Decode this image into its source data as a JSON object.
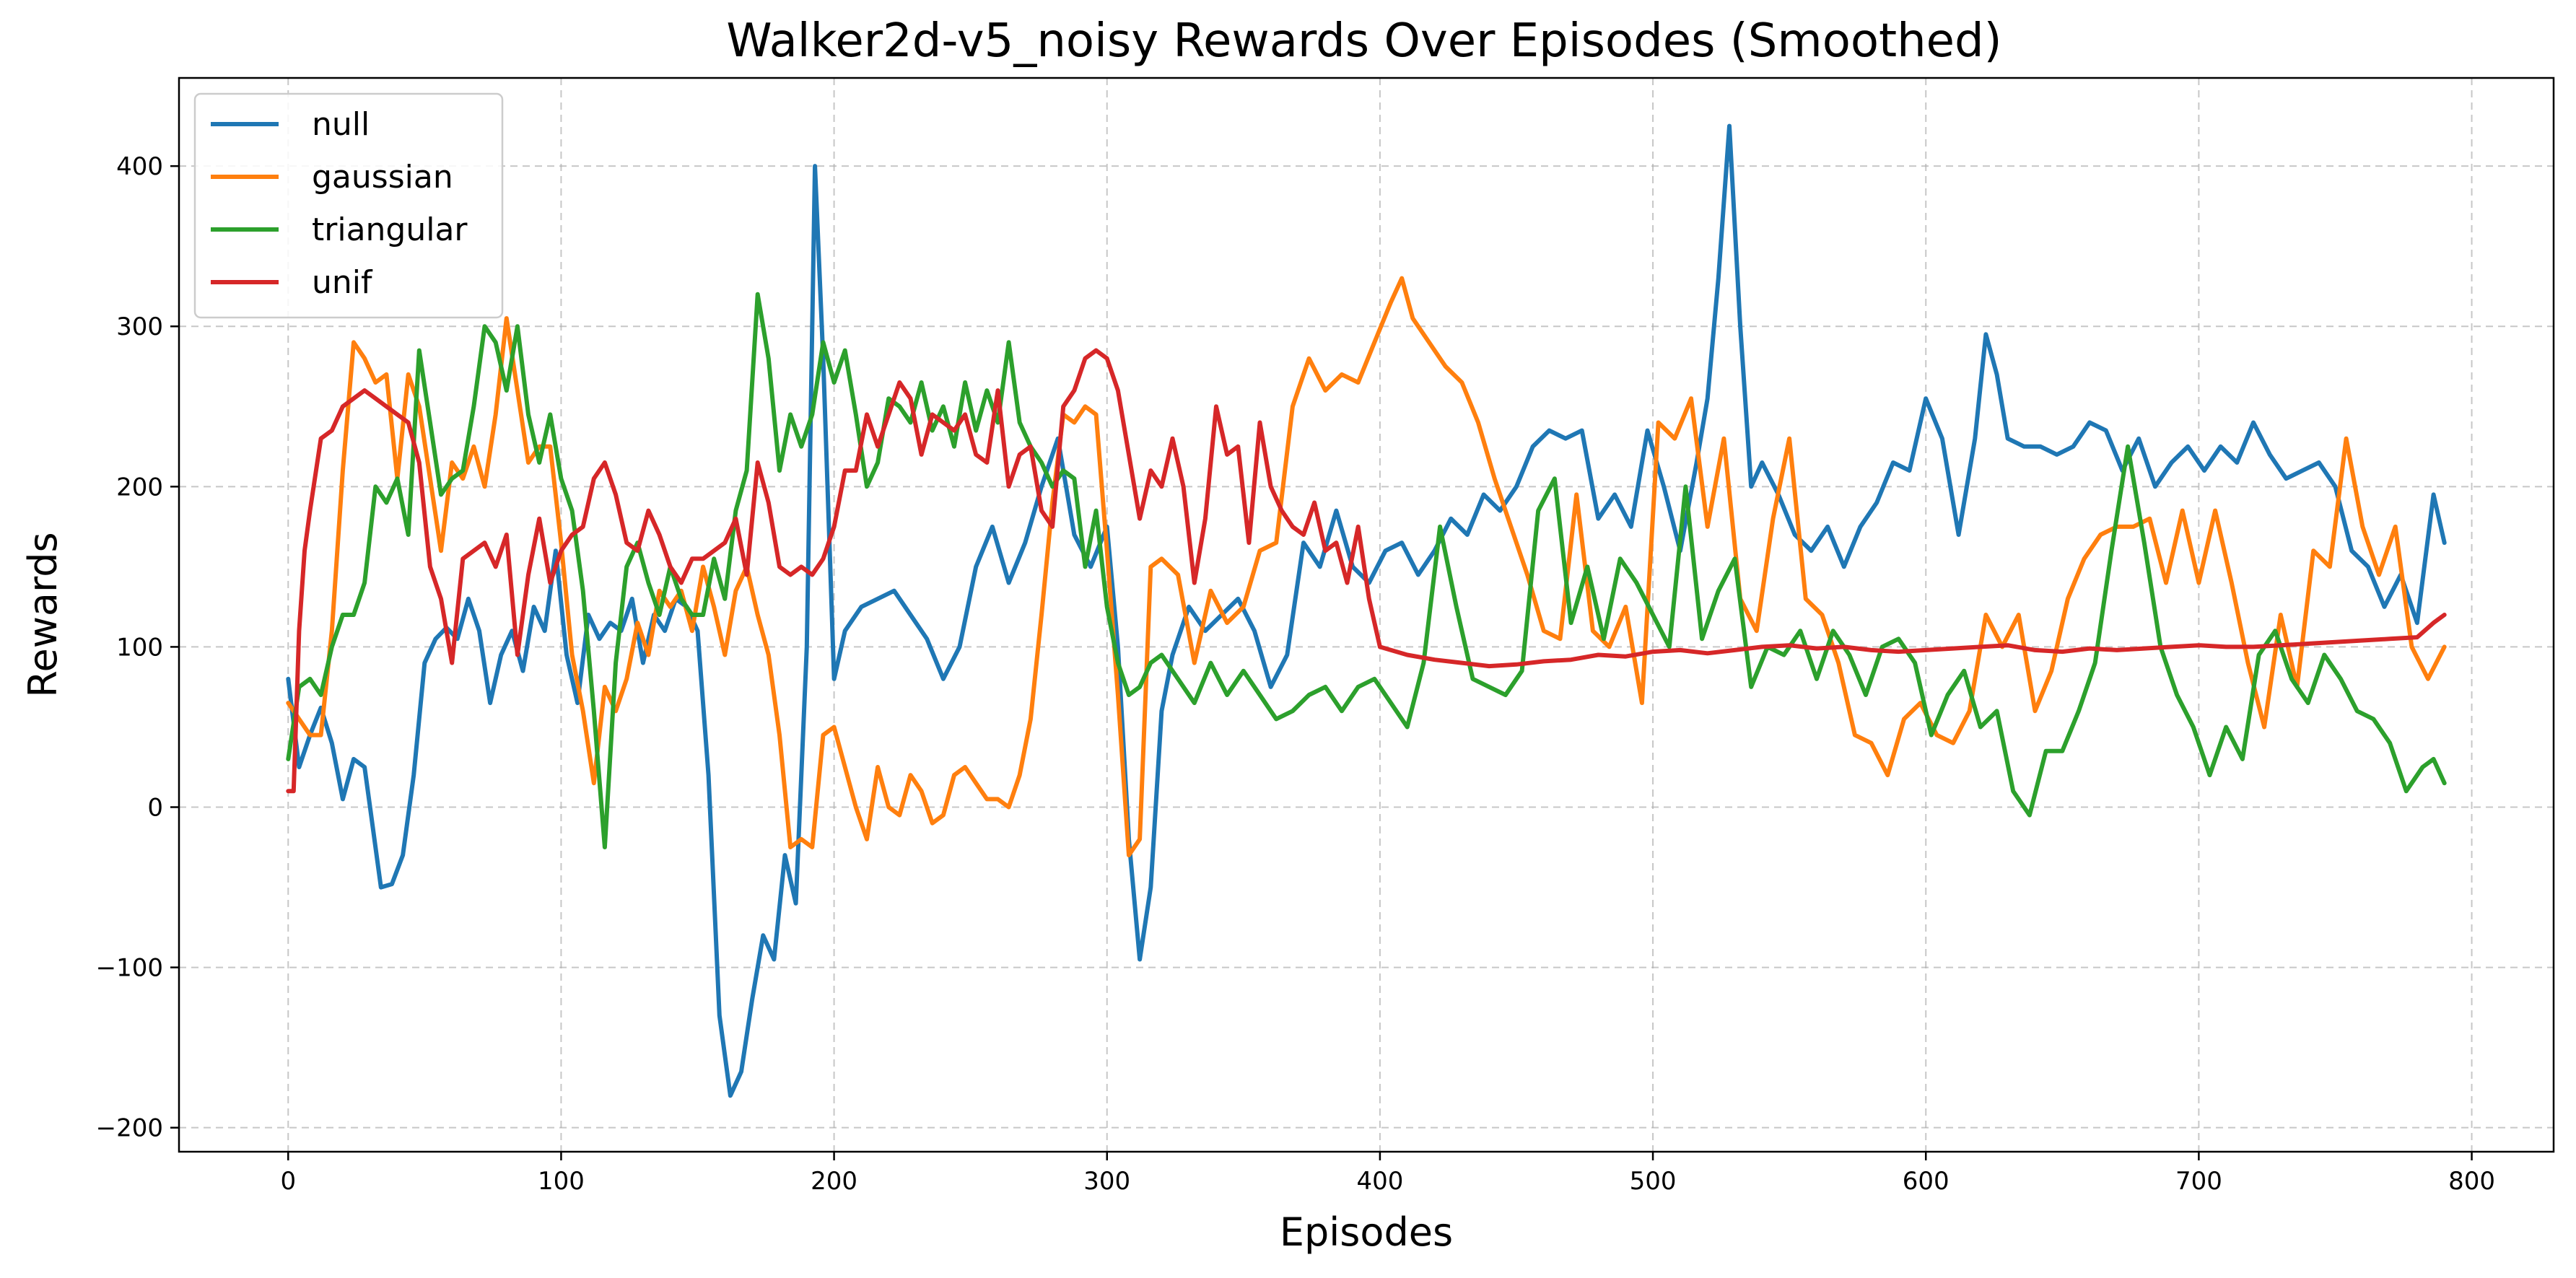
{
  "chart_data": {
    "type": "line",
    "title": "Walker2d-v5_noisy Rewards Over Episodes (Smoothed)",
    "xlabel": "Episodes",
    "ylabel": "Rewards",
    "xlim": [
      -40,
      830
    ],
    "ylim": [
      -215,
      455
    ],
    "xticks": [
      0,
      100,
      200,
      300,
      400,
      500,
      600,
      700,
      800
    ],
    "yticks": [
      -200,
      -100,
      0,
      100,
      200,
      300,
      400
    ],
    "xtick_labels": [
      "0",
      "100",
      "200",
      "300",
      "400",
      "500",
      "600",
      "700",
      "800"
    ],
    "ytick_labels": [
      "−200",
      "−100",
      "0",
      "100",
      "200",
      "300",
      "400"
    ],
    "grid": true,
    "legend_position": "top-left",
    "series": [
      {
        "name": "null",
        "color": "#1f77b4",
        "x": [
          0,
          4,
          8,
          12,
          16,
          20,
          24,
          28,
          30,
          34,
          38,
          42,
          46,
          50,
          54,
          58,
          62,
          66,
          70,
          74,
          78,
          82,
          86,
          90,
          94,
          98,
          102,
          106,
          110,
          114,
          118,
          122,
          126,
          130,
          134,
          138,
          142,
          146,
          150,
          154,
          158,
          162,
          166,
          170,
          174,
          178,
          182,
          186,
          190,
          193,
          196,
          200,
          204,
          210,
          216,
          222,
          228,
          234,
          240,
          246,
          252,
          258,
          264,
          270,
          276,
          282,
          288,
          294,
          300,
          304,
          308,
          312,
          316,
          320,
          324,
          330,
          336,
          342,
          348,
          354,
          360,
          366,
          372,
          378,
          384,
          390,
          396,
          402,
          408,
          414,
          420,
          426,
          432,
          438,
          444,
          450,
          456,
          462,
          468,
          474,
          480,
          486,
          492,
          498,
          504,
          510,
          516,
          520,
          524,
          528,
          532,
          536,
          540,
          546,
          552,
          558,
          564,
          570,
          576,
          582,
          588,
          594,
          600,
          606,
          612,
          618,
          622,
          626,
          630,
          636,
          642,
          648,
          654,
          660,
          666,
          672,
          678,
          684,
          690,
          696,
          702,
          708,
          714,
          720,
          726,
          732,
          738,
          744,
          750,
          756,
          762,
          768,
          774,
          780,
          786,
          790
        ],
        "y": [
          80,
          25,
          45,
          62,
          40,
          5,
          30,
          25,
          0,
          -50,
          -48,
          -30,
          20,
          90,
          105,
          112,
          105,
          130,
          110,
          65,
          95,
          110,
          85,
          125,
          110,
          160,
          95,
          65,
          120,
          105,
          115,
          110,
          130,
          90,
          120,
          110,
          130,
          125,
          110,
          20,
          -130,
          -180,
          -165,
          -120,
          -80,
          -95,
          -30,
          -60,
          100,
          400,
          280,
          80,
          110,
          125,
          130,
          135,
          120,
          105,
          80,
          100,
          150,
          175,
          140,
          165,
          200,
          230,
          170,
          150,
          175,
          100,
          -20,
          -95,
          -50,
          60,
          95,
          125,
          110,
          120,
          130,
          110,
          75,
          95,
          165,
          150,
          185,
          150,
          140,
          160,
          165,
          145,
          160,
          180,
          170,
          195,
          185,
          200,
          225,
          235,
          230,
          235,
          180,
          195,
          175,
          235,
          200,
          160,
          215,
          255,
          330,
          425,
          300,
          200,
          215,
          195,
          170,
          160,
          175,
          150,
          175,
          190,
          215,
          210,
          255,
          230,
          170,
          230,
          295,
          270,
          230,
          225,
          225,
          220,
          225,
          240,
          235,
          210,
          230,
          200,
          215,
          225,
          210,
          225,
          215,
          240,
          220,
          205,
          210,
          215,
          200,
          160,
          150,
          125,
          145,
          115,
          195,
          165
        ]
      },
      {
        "name": "gaussian",
        "color": "#ff7f0e",
        "x": [
          0,
          4,
          8,
          12,
          16,
          20,
          24,
          28,
          32,
          36,
          40,
          44,
          48,
          52,
          56,
          60,
          64,
          68,
          72,
          76,
          80,
          84,
          88,
          92,
          96,
          100,
          104,
          108,
          112,
          116,
          120,
          124,
          128,
          132,
          136,
          140,
          144,
          148,
          152,
          156,
          160,
          164,
          168,
          172,
          176,
          180,
          184,
          188,
          192,
          196,
          200,
          204,
          208,
          212,
          216,
          220,
          224,
          228,
          232,
          236,
          240,
          244,
          248,
          252,
          256,
          260,
          264,
          268,
          272,
          276,
          280,
          284,
          288,
          292,
          296,
          300,
          304,
          308,
          312,
          316,
          320,
          326,
          332,
          338,
          344,
          350,
          356,
          362,
          368,
          374,
          380,
          386,
          392,
          398,
          404,
          408,
          412,
          418,
          424,
          430,
          436,
          442,
          448,
          454,
          460,
          466,
          472,
          478,
          484,
          490,
          496,
          502,
          508,
          514,
          520,
          526,
          532,
          538,
          544,
          550,
          556,
          562,
          568,
          574,
          580,
          586,
          592,
          598,
          604,
          610,
          616,
          622,
          628,
          634,
          640,
          646,
          652,
          658,
          664,
          670,
          676,
          682,
          688,
          694,
          700,
          706,
          712,
          718,
          724,
          730,
          736,
          742,
          748,
          754,
          760,
          766,
          772,
          778,
          784,
          790
        ],
        "y": [
          65,
          55,
          45,
          45,
          110,
          210,
          290,
          280,
          265,
          270,
          205,
          270,
          250,
          205,
          160,
          215,
          205,
          225,
          200,
          245,
          305,
          260,
          215,
          225,
          225,
          165,
          95,
          60,
          15,
          75,
          60,
          80,
          115,
          95,
          135,
          125,
          135,
          110,
          150,
          125,
          95,
          135,
          150,
          120,
          95,
          45,
          -25,
          -20,
          -25,
          45,
          50,
          25,
          0,
          -20,
          25,
          0,
          -5,
          20,
          10,
          -10,
          -5,
          20,
          25,
          15,
          5,
          5,
          0,
          20,
          55,
          120,
          190,
          245,
          240,
          250,
          245,
          160,
          70,
          -30,
          -20,
          150,
          155,
          145,
          90,
          135,
          115,
          125,
          160,
          165,
          250,
          280,
          260,
          270,
          265,
          290,
          315,
          330,
          305,
          290,
          275,
          265,
          240,
          205,
          175,
          145,
          110,
          105,
          195,
          110,
          100,
          125,
          65,
          240,
          230,
          255,
          175,
          230,
          130,
          110,
          180,
          230,
          130,
          120,
          90,
          45,
          40,
          20,
          55,
          65,
          45,
          40,
          60,
          120,
          100,
          120,
          60,
          85,
          130,
          155,
          170,
          175,
          175,
          180,
          140,
          185,
          140,
          185,
          140,
          90,
          50,
          120,
          75,
          160,
          150,
          230,
          175,
          145,
          175,
          100,
          80,
          100
        ]
      },
      {
        "name": "triangular",
        "color": "#2ca02c",
        "x": [
          0,
          4,
          8,
          12,
          16,
          20,
          24,
          28,
          32,
          36,
          40,
          44,
          48,
          52,
          56,
          60,
          64,
          68,
          72,
          76,
          80,
          84,
          88,
          92,
          96,
          100,
          104,
          108,
          112,
          116,
          120,
          124,
          128,
          132,
          136,
          140,
          144,
          148,
          152,
          156,
          160,
          164,
          168,
          172,
          176,
          180,
          184,
          188,
          192,
          196,
          200,
          204,
          208,
          212,
          216,
          220,
          224,
          228,
          232,
          236,
          240,
          244,
          248,
          252,
          256,
          260,
          264,
          268,
          272,
          276,
          280,
          284,
          288,
          292,
          296,
          300,
          304,
          308,
          312,
          316,
          320,
          326,
          332,
          338,
          344,
          350,
          356,
          362,
          368,
          374,
          380,
          386,
          392,
          398,
          404,
          410,
          416,
          422,
          428,
          434,
          440,
          446,
          452,
          458,
          464,
          470,
          476,
          482,
          488,
          494,
          500,
          506,
          512,
          518,
          524,
          530,
          536,
          542,
          548,
          554,
          560,
          566,
          572,
          578,
          584,
          590,
          596,
          602,
          608,
          614,
          620,
          626,
          632,
          638,
          644,
          650,
          656,
          662,
          668,
          674,
          680,
          686,
          692,
          698,
          704,
          710,
          716,
          722,
          728,
          734,
          740,
          746,
          752,
          758,
          764,
          770,
          776,
          782,
          786,
          790
        ],
        "y": [
          30,
          75,
          80,
          70,
          100,
          120,
          120,
          140,
          200,
          190,
          205,
          170,
          285,
          240,
          195,
          205,
          210,
          250,
          300,
          290,
          260,
          300,
          245,
          215,
          245,
          205,
          185,
          135,
          60,
          -25,
          90,
          150,
          165,
          140,
          120,
          150,
          130,
          120,
          120,
          155,
          130,
          185,
          210,
          320,
          280,
          210,
          245,
          225,
          245,
          290,
          265,
          285,
          245,
          200,
          215,
          255,
          250,
          240,
          265,
          235,
          250,
          225,
          265,
          235,
          260,
          240,
          290,
          240,
          225,
          215,
          200,
          210,
          205,
          150,
          185,
          125,
          90,
          70,
          75,
          90,
          95,
          80,
          65,
          90,
          70,
          85,
          70,
          55,
          60,
          70,
          75,
          60,
          75,
          80,
          65,
          50,
          90,
          175,
          125,
          80,
          75,
          70,
          85,
          185,
          205,
          115,
          150,
          105,
          155,
          140,
          120,
          100,
          200,
          105,
          135,
          155,
          75,
          100,
          95,
          110,
          80,
          110,
          95,
          70,
          100,
          105,
          90,
          45,
          70,
          85,
          50,
          60,
          10,
          -5,
          35,
          35,
          60,
          90,
          160,
          225,
          165,
          100,
          70,
          50,
          20,
          50,
          30,
          95,
          110,
          80,
          65,
          95,
          80,
          60,
          55,
          40,
          10,
          25,
          30,
          15
        ]
      },
      {
        "name": "unif",
        "color": "#d62728",
        "x": [
          0,
          2,
          4,
          6,
          8,
          12,
          16,
          20,
          24,
          28,
          32,
          36,
          40,
          44,
          48,
          52,
          56,
          60,
          64,
          68,
          72,
          76,
          80,
          84,
          88,
          92,
          96,
          100,
          104,
          108,
          112,
          116,
          120,
          124,
          128,
          132,
          136,
          140,
          144,
          148,
          152,
          156,
          160,
          164,
          168,
          172,
          176,
          180,
          184,
          188,
          192,
          196,
          200,
          204,
          208,
          212,
          216,
          220,
          224,
          228,
          232,
          236,
          240,
          244,
          248,
          252,
          256,
          260,
          264,
          268,
          272,
          276,
          280,
          284,
          288,
          292,
          296,
          300,
          304,
          308,
          312,
          316,
          320,
          324,
          328,
          332,
          336,
          340,
          344,
          348,
          352,
          356,
          360,
          364,
          368,
          372,
          376,
          380,
          384,
          388,
          392,
          396,
          400,
          410,
          420,
          430,
          440,
          450,
          460,
          470,
          480,
          490,
          500,
          510,
          520,
          530,
          540,
          550,
          560,
          570,
          580,
          590,
          600,
          610,
          620,
          630,
          640,
          650,
          660,
          670,
          680,
          690,
          700,
          710,
          720,
          730,
          740,
          750,
          760,
          770,
          780,
          786,
          790
        ],
        "y": [
          10,
          10,
          110,
          160,
          185,
          230,
          235,
          250,
          255,
          260,
          255,
          250,
          245,
          240,
          215,
          150,
          130,
          90,
          155,
          160,
          165,
          150,
          170,
          95,
          145,
          180,
          140,
          160,
          170,
          175,
          205,
          215,
          195,
          165,
          160,
          185,
          170,
          150,
          140,
          155,
          155,
          160,
          165,
          180,
          145,
          215,
          190,
          150,
          145,
          150,
          145,
          155,
          175,
          210,
          210,
          245,
          225,
          245,
          265,
          255,
          220,
          245,
          240,
          235,
          245,
          220,
          215,
          260,
          200,
          220,
          225,
          185,
          175,
          250,
          260,
          280,
          285,
          280,
          260,
          220,
          180,
          210,
          200,
          230,
          200,
          140,
          180,
          250,
          220,
          225,
          165,
          240,
          200,
          185,
          175,
          170,
          190,
          160,
          165,
          140,
          175,
          130,
          100,
          95,
          92,
          90,
          88,
          89,
          91,
          92,
          95,
          94,
          97,
          98,
          96,
          98,
          100,
          101,
          99,
          100,
          98,
          97,
          98,
          99,
          100,
          101,
          98,
          97,
          99,
          98,
          99,
          100,
          101,
          100,
          100,
          101,
          102,
          103,
          104,
          105,
          106,
          115,
          120
        ]
      }
    ]
  }
}
